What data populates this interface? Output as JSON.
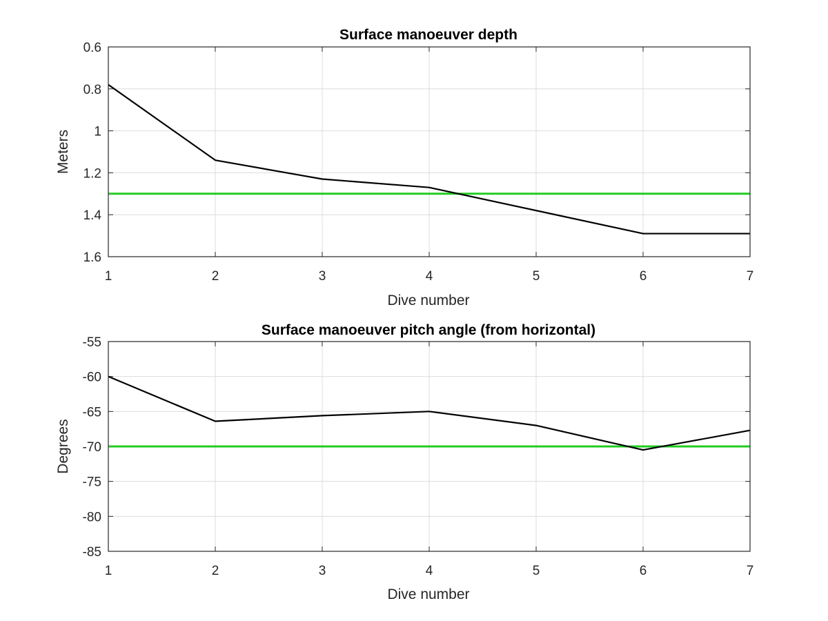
{
  "chart_data": [
    {
      "type": "line",
      "title": "Surface manoeuver depth",
      "xlabel": "Dive number",
      "ylabel": "Meters",
      "xlim": [
        1,
        7
      ],
      "ylim": [
        0.6,
        1.6
      ],
      "y_reversed": true,
      "grid": true,
      "x_ticks": [
        1,
        2,
        3,
        4,
        5,
        6,
        7
      ],
      "x_tick_labels": [
        "1",
        "2",
        "3",
        "4",
        "5",
        "6",
        "7"
      ],
      "y_ticks": [
        0.6,
        0.8,
        1,
        1.2,
        1.4,
        1.6
      ],
      "y_tick_labels": [
        "0.6",
        "0.8",
        "1",
        "1.2",
        "1.4",
        "1.6"
      ],
      "series": [
        {
          "color": "#000000",
          "x": [
            1,
            2,
            3,
            4,
            5,
            6,
            7
          ],
          "y": [
            0.78,
            1.14,
            1.23,
            1.27,
            1.38,
            1.49,
            1.49
          ]
        }
      ],
      "reference_line": {
        "y": 1.3,
        "color": "#22cc22"
      }
    },
    {
      "type": "line",
      "title": "Surface manoeuver pitch angle (from horizontal)",
      "xlabel": "Dive number",
      "ylabel": "Degrees",
      "xlim": [
        1,
        7
      ],
      "ylim": [
        -85,
        -55
      ],
      "y_reversed": false,
      "grid": true,
      "x_ticks": [
        1,
        2,
        3,
        4,
        5,
        6,
        7
      ],
      "x_tick_labels": [
        "1",
        "2",
        "3",
        "4",
        "5",
        "6",
        "7"
      ],
      "y_ticks": [
        -55,
        -60,
        -65,
        -70,
        -75,
        -80,
        -85
      ],
      "y_tick_labels": [
        "-55",
        "-60",
        "-65",
        "-70",
        "-75",
        "-80",
        "-85"
      ],
      "series": [
        {
          "color": "#000000",
          "x": [
            1,
            2,
            3,
            4,
            5,
            6,
            7
          ],
          "y": [
            -60,
            -66.4,
            -65.6,
            -65,
            -67,
            -70.5,
            -67.7
          ]
        }
      ],
      "reference_line": {
        "y": -70,
        "color": "#22cc22"
      }
    }
  ]
}
